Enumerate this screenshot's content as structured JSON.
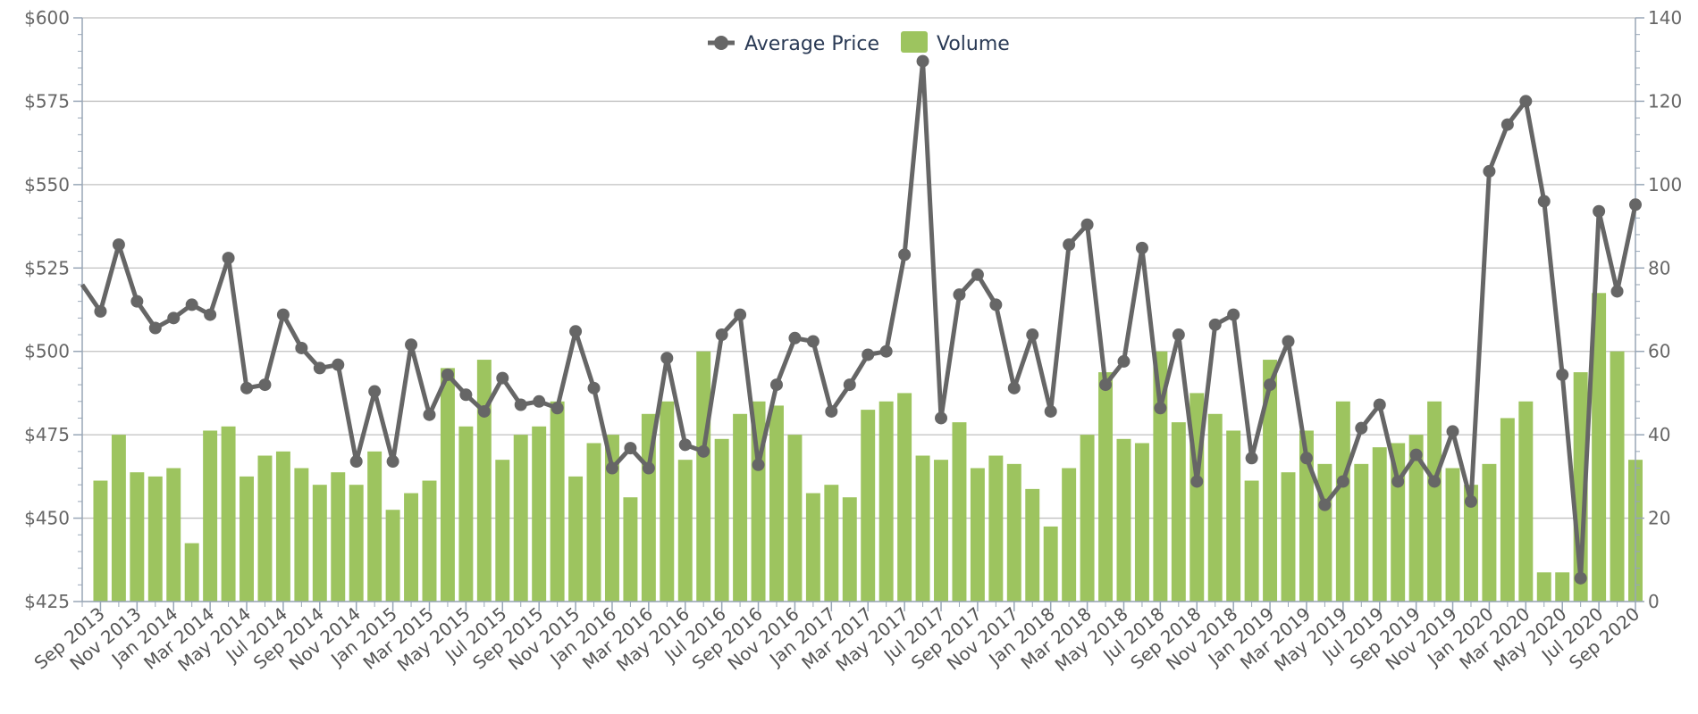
{
  "chart_data": {
    "type": "bar+line",
    "title": "",
    "xlabel": "",
    "legend": {
      "placement": "top-center"
    },
    "colors": {
      "price_line": "#666666",
      "volume_bar": "#9dc45f",
      "grid": "#c0c0c0",
      "axis": "#98a6b6"
    },
    "left_axis": {
      "ylim": [
        425,
        600
      ],
      "ticks": [
        "$425",
        "$450",
        "$475",
        "$500",
        "$525",
        "$550",
        "$575",
        "$600"
      ]
    },
    "right_axis": {
      "ylim": [
        0,
        140
      ],
      "ticks": [
        "0",
        "20",
        "40",
        "60",
        "80",
        "100",
        "120",
        "140"
      ]
    },
    "x_tick_labels": [
      "Sep 2013",
      "Nov 2013",
      "Jan 2014",
      "Mar 2014",
      "May 2014",
      "Jul 2014",
      "Sep 2014",
      "Nov 2014",
      "Jan 2015",
      "Mar 2015",
      "May 2015",
      "Jul 2015",
      "Sep 2015",
      "Nov 2015",
      "Jan 2016",
      "Mar 2016",
      "May 2016",
      "Jul 2016",
      "Sep 2016",
      "Nov 2016",
      "Jan 2017",
      "Mar 2017",
      "May 2017",
      "Jul 2017",
      "Sep 2017",
      "Nov 2017",
      "Jan 2018",
      "Mar 2018",
      "May 2018",
      "Jul 2018",
      "Sep 2018",
      "Nov 2018",
      "Jan 2019",
      "Mar 2019",
      "May 2019",
      "Jul 2019",
      "Sep 2019",
      "Nov 2019",
      "Jan 2020",
      "Mar 2020",
      "May 2020",
      "Jul 2020",
      "Sep 2020"
    ],
    "categories": [
      "Aug 2013",
      "Sep 2013",
      "Oct 2013",
      "Nov 2013",
      "Dec 2013",
      "Jan 2014",
      "Feb 2014",
      "Mar 2014",
      "Apr 2014",
      "May 2014",
      "Jun 2014",
      "Jul 2014",
      "Aug 2014",
      "Sep 2014",
      "Oct 2014",
      "Nov 2014",
      "Dec 2014",
      "Jan 2015",
      "Feb 2015",
      "Mar 2015",
      "Apr 2015",
      "May 2015",
      "Jun 2015",
      "Jul 2015",
      "Aug 2015",
      "Sep 2015",
      "Oct 2015",
      "Nov 2015",
      "Dec 2015",
      "Jan 2016",
      "Feb 2016",
      "Mar 2016",
      "Apr 2016",
      "May 2016",
      "Jun 2016",
      "Jul 2016",
      "Aug 2016",
      "Sep 2016",
      "Oct 2016",
      "Nov 2016",
      "Dec 2016",
      "Jan 2017",
      "Feb 2017",
      "Mar 2017",
      "Apr 2017",
      "May 2017",
      "Jun 2017",
      "Jul 2017",
      "Aug 2017",
      "Sep 2017",
      "Oct 2017",
      "Nov 2017",
      "Dec 2017",
      "Jan 2018",
      "Feb 2018",
      "Mar 2018",
      "Apr 2018",
      "May 2018",
      "Jun 2018",
      "Jul 2018",
      "Aug 2018",
      "Sep 2018",
      "Oct 2018",
      "Nov 2018",
      "Dec 2018",
      "Jan 2019",
      "Feb 2019",
      "Mar 2019",
      "Apr 2019",
      "May 2019",
      "Jun 2019",
      "Jul 2019",
      "Aug 2019",
      "Sep 2019",
      "Oct 2019",
      "Nov 2019",
      "Dec 2019",
      "Jan 2020",
      "Feb 2020",
      "Mar 2020",
      "Apr 2020",
      "May 2020",
      "Jun 2020",
      "Jul 2020",
      "Aug 2020",
      "Sep 2020"
    ],
    "series": [
      {
        "name": "Volume",
        "type": "bar",
        "axis": "right",
        "values": [
          null,
          29,
          40,
          31,
          30,
          32,
          14,
          41,
          42,
          30,
          35,
          36,
          32,
          28,
          31,
          28,
          36,
          22,
          26,
          29,
          56,
          42,
          58,
          34,
          40,
          42,
          48,
          30,
          38,
          40,
          25,
          45,
          48,
          34,
          60,
          39,
          45,
          48,
          47,
          40,
          26,
          28,
          25,
          46,
          48,
          50,
          35,
          34,
          43,
          32,
          35,
          33,
          27,
          18,
          32,
          40,
          55,
          39,
          38,
          60,
          43,
          50,
          45,
          41,
          29,
          58,
          31,
          41,
          33,
          48,
          33,
          37,
          38,
          40,
          48,
          32,
          28,
          33,
          44,
          48,
          7,
          7,
          55,
          74,
          60,
          34
        ]
      },
      {
        "name": "Average Price",
        "type": "line",
        "axis": "left",
        "values": [
          520,
          512,
          532,
          515,
          507,
          510,
          514,
          511,
          528,
          489,
          490,
          511,
          501,
          495,
          496,
          467,
          488,
          467,
          502,
          481,
          493,
          487,
          482,
          492,
          484,
          485,
          483,
          506,
          489,
          465,
          471,
          465,
          498,
          472,
          470,
          505,
          511,
          466,
          490,
          504,
          503,
          482,
          490,
          499,
          500,
          529,
          587,
          480,
          517,
          523,
          514,
          489,
          505,
          482,
          532,
          538,
          490,
          497,
          531,
          483,
          505,
          461,
          508,
          511,
          468,
          490,
          503,
          468,
          454,
          461,
          477,
          484,
          461,
          469,
          461,
          476,
          455,
          554,
          568,
          575,
          545,
          493,
          432,
          542,
          518,
          544
        ]
      }
    ]
  }
}
